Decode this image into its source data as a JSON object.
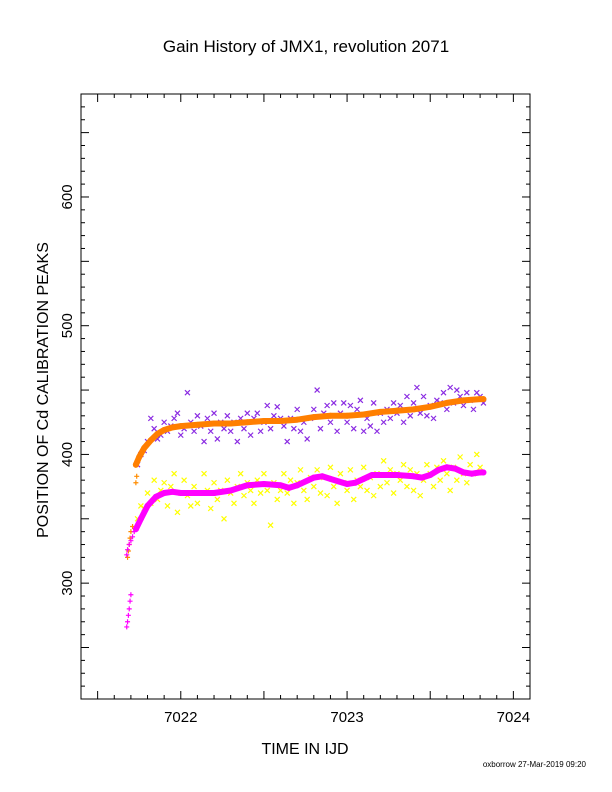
{
  "chart_data": {
    "type": "scatter",
    "title": "Gain History of JMX1, revolution 2071",
    "xlabel": "TIME IN IJD",
    "ylabel": "POSITION OF Cd CALIBRATION PEAKS",
    "xlim": [
      7021.4,
      7024.1
    ],
    "ylim": [
      210,
      680
    ],
    "x_ticks": [
      7022,
      7023,
      7024
    ],
    "x_tick_labels": [
      "7022",
      "7023",
      "7024"
    ],
    "y_ticks": [
      300,
      400,
      500,
      600
    ],
    "y_tick_labels": [
      "300",
      "400",
      "500",
      "600"
    ],
    "grid": false,
    "footer": "oxborrow 27-Mar-2019 09:20",
    "series": [
      {
        "marker": "x",
        "color": "#8a2be2",
        "points": [
          [
            7021.74,
            392
          ],
          [
            7021.76,
            400
          ],
          [
            7021.78,
            403
          ],
          [
            7021.8,
            410
          ],
          [
            7021.82,
            428
          ],
          [
            7021.84,
            420
          ],
          [
            7021.86,
            412
          ],
          [
            7021.88,
            415
          ],
          [
            7021.9,
            425
          ],
          [
            7021.92,
            418
          ],
          [
            7021.94,
            422
          ],
          [
            7021.96,
            428
          ],
          [
            7021.98,
            432
          ],
          [
            7022.0,
            415
          ],
          [
            7022.02,
            420
          ],
          [
            7022.04,
            448
          ],
          [
            7022.06,
            425
          ],
          [
            7022.08,
            418
          ],
          [
            7022.1,
            430
          ],
          [
            7022.12,
            422
          ],
          [
            7022.14,
            410
          ],
          [
            7022.16,
            428
          ],
          [
            7022.18,
            418
          ],
          [
            7022.2,
            432
          ],
          [
            7022.22,
            412
          ],
          [
            7022.24,
            425
          ],
          [
            7022.26,
            420
          ],
          [
            7022.28,
            430
          ],
          [
            7022.3,
            418
          ],
          [
            7022.32,
            425
          ],
          [
            7022.34,
            410
          ],
          [
            7022.36,
            428
          ],
          [
            7022.38,
            420
          ],
          [
            7022.4,
            432
          ],
          [
            7022.42,
            415
          ],
          [
            7022.44,
            428
          ],
          [
            7022.46,
            432
          ],
          [
            7022.48,
            418
          ],
          [
            7022.5,
            425
          ],
          [
            7022.52,
            438
          ],
          [
            7022.54,
            420
          ],
          [
            7022.56,
            430
          ],
          [
            7022.58,
            437
          ],
          [
            7022.6,
            428
          ],
          [
            7022.62,
            422
          ],
          [
            7022.64,
            410
          ],
          [
            7022.66,
            428
          ],
          [
            7022.68,
            420
          ],
          [
            7022.7,
            435
          ],
          [
            7022.72,
            418
          ],
          [
            7022.74,
            425
          ],
          [
            7022.76,
            412
          ],
          [
            7022.78,
            428
          ],
          [
            7022.8,
            435
          ],
          [
            7022.82,
            450
          ],
          [
            7022.84,
            420
          ],
          [
            7022.86,
            432
          ],
          [
            7022.88,
            438
          ],
          [
            7022.9,
            425
          ],
          [
            7022.92,
            440
          ],
          [
            7022.94,
            418
          ],
          [
            7022.96,
            432
          ],
          [
            7022.98,
            440
          ],
          [
            7023.0,
            425
          ],
          [
            7023.02,
            438
          ],
          [
            7023.04,
            420
          ],
          [
            7023.06,
            435
          ],
          [
            7023.08,
            442
          ],
          [
            7023.1,
            418
          ],
          [
            7023.12,
            428
          ],
          [
            7023.14,
            422
          ],
          [
            7023.16,
            440
          ],
          [
            7023.18,
            418
          ],
          [
            7023.2,
            432
          ],
          [
            7023.22,
            425
          ],
          [
            7023.24,
            435
          ],
          [
            7023.26,
            428
          ],
          [
            7023.28,
            440
          ],
          [
            7023.3,
            432
          ],
          [
            7023.32,
            438
          ],
          [
            7023.34,
            425
          ],
          [
            7023.36,
            445
          ],
          [
            7023.38,
            430
          ],
          [
            7023.4,
            440
          ],
          [
            7023.42,
            452
          ],
          [
            7023.44,
            432
          ],
          [
            7023.46,
            445
          ],
          [
            7023.48,
            430
          ],
          [
            7023.5,
            438
          ],
          [
            7023.52,
            428
          ],
          [
            7023.54,
            442
          ],
          [
            7023.56,
            440
          ],
          [
            7023.58,
            448
          ],
          [
            7023.6,
            435
          ],
          [
            7023.62,
            452
          ],
          [
            7023.64,
            440
          ],
          [
            7023.66,
            450
          ],
          [
            7023.68,
            445
          ],
          [
            7023.7,
            438
          ],
          [
            7023.72,
            448
          ],
          [
            7023.74,
            442
          ],
          [
            7023.76,
            435
          ],
          [
            7023.78,
            448
          ],
          [
            7023.8,
            445
          ],
          [
            7023.82,
            440
          ]
        ]
      },
      {
        "marker": "plus",
        "color": "#ff8c00",
        "points": [
          [
            7021.68,
            320
          ],
          [
            7021.685,
            325
          ],
          [
            7021.69,
            330
          ],
          [
            7021.695,
            335
          ],
          [
            7021.7,
            340
          ],
          [
            7021.71,
            344
          ],
          [
            7021.73,
            378
          ],
          [
            7021.735,
            383
          ]
        ]
      },
      {
        "marker": "thick-line",
        "color": "#ff7f00",
        "points": [
          [
            7021.73,
            392
          ],
          [
            7021.75,
            398
          ],
          [
            7021.78,
            405
          ],
          [
            7021.82,
            411
          ],
          [
            7021.86,
            416
          ],
          [
            7021.9,
            419
          ],
          [
            7021.95,
            421
          ],
          [
            7022.0,
            422
          ],
          [
            7022.1,
            423
          ],
          [
            7022.2,
            424
          ],
          [
            7022.3,
            424
          ],
          [
            7022.4,
            425
          ],
          [
            7022.5,
            426
          ],
          [
            7022.6,
            426
          ],
          [
            7022.7,
            427
          ],
          [
            7022.8,
            429
          ],
          [
            7022.9,
            430
          ],
          [
            7023.0,
            430
          ],
          [
            7023.1,
            431
          ],
          [
            7023.2,
            433
          ],
          [
            7023.3,
            434
          ],
          [
            7023.4,
            435
          ],
          [
            7023.5,
            437
          ],
          [
            7023.6,
            440
          ],
          [
            7023.7,
            442
          ],
          [
            7023.8,
            443
          ],
          [
            7023.82,
            443
          ]
        ]
      },
      {
        "marker": "x",
        "color": "#ffff00",
        "points": [
          [
            7021.74,
            350
          ],
          [
            7021.76,
            360
          ],
          [
            7021.78,
            358
          ],
          [
            7021.8,
            370
          ],
          [
            7021.82,
            362
          ],
          [
            7021.84,
            380
          ],
          [
            7021.86,
            365
          ],
          [
            7021.88,
            372
          ],
          [
            7021.9,
            378
          ],
          [
            7021.92,
            360
          ],
          [
            7021.94,
            375
          ],
          [
            7021.96,
            385
          ],
          [
            7021.98,
            355
          ],
          [
            7022.0,
            370
          ],
          [
            7022.02,
            380
          ],
          [
            7022.04,
            368
          ],
          [
            7022.06,
            360
          ],
          [
            7022.08,
            375
          ],
          [
            7022.1,
            362
          ],
          [
            7022.12,
            370
          ],
          [
            7022.14,
            385
          ],
          [
            7022.16,
            372
          ],
          [
            7022.18,
            358
          ],
          [
            7022.2,
            378
          ],
          [
            7022.22,
            365
          ],
          [
            7022.24,
            372
          ],
          [
            7022.26,
            350
          ],
          [
            7022.28,
            380
          ],
          [
            7022.3,
            370
          ],
          [
            7022.32,
            362
          ],
          [
            7022.34,
            375
          ],
          [
            7022.36,
            385
          ],
          [
            7022.38,
            368
          ],
          [
            7022.4,
            378
          ],
          [
            7022.42,
            372
          ],
          [
            7022.44,
            362
          ],
          [
            7022.46,
            380
          ],
          [
            7022.48,
            370
          ],
          [
            7022.5,
            385
          ],
          [
            7022.52,
            372
          ],
          [
            7022.54,
            345
          ],
          [
            7022.56,
            378
          ],
          [
            7022.58,
            365
          ],
          [
            7022.6,
            372
          ],
          [
            7022.62,
            385
          ],
          [
            7022.64,
            370
          ],
          [
            7022.66,
            380
          ],
          [
            7022.68,
            362
          ],
          [
            7022.7,
            378
          ],
          [
            7022.72,
            388
          ],
          [
            7022.74,
            372
          ],
          [
            7022.76,
            365
          ],
          [
            7022.78,
            382
          ],
          [
            7022.8,
            375
          ],
          [
            7022.82,
            388
          ],
          [
            7022.84,
            370
          ],
          [
            7022.86,
            382
          ],
          [
            7022.88,
            368
          ],
          [
            7022.9,
            390
          ],
          [
            7022.92,
            375
          ],
          [
            7022.94,
            362
          ],
          [
            7022.96,
            385
          ],
          [
            7022.98,
            378
          ],
          [
            7023.0,
            372
          ],
          [
            7023.02,
            388
          ],
          [
            7023.04,
            365
          ],
          [
            7023.06,
            380
          ],
          [
            7023.08,
            375
          ],
          [
            7023.1,
            390
          ],
          [
            7023.12,
            372
          ],
          [
            7023.14,
            382
          ],
          [
            7023.16,
            368
          ],
          [
            7023.18,
            385
          ],
          [
            7023.2,
            375
          ],
          [
            7023.22,
            395
          ],
          [
            7023.24,
            378
          ],
          [
            7023.26,
            388
          ],
          [
            7023.28,
            370
          ],
          [
            7023.3,
            385
          ],
          [
            7023.32,
            380
          ],
          [
            7023.34,
            392
          ],
          [
            7023.36,
            375
          ],
          [
            7023.38,
            388
          ],
          [
            7023.4,
            372
          ],
          [
            7023.42,
            385
          ],
          [
            7023.44,
            368
          ],
          [
            7023.46,
            380
          ],
          [
            7023.48,
            392
          ],
          [
            7023.5,
            385
          ],
          [
            7023.52,
            375
          ],
          [
            7023.54,
            390
          ],
          [
            7023.56,
            380
          ],
          [
            7023.58,
            395
          ],
          [
            7023.6,
            385
          ],
          [
            7023.62,
            372
          ],
          [
            7023.64,
            390
          ],
          [
            7023.66,
            380
          ],
          [
            7023.68,
            398
          ],
          [
            7023.7,
            385
          ],
          [
            7023.72,
            378
          ],
          [
            7023.74,
            392
          ],
          [
            7023.76,
            385
          ],
          [
            7023.78,
            400
          ],
          [
            7023.8,
            390
          ]
        ]
      },
      {
        "marker": "plus",
        "color": "#ff00ff",
        "points": [
          [
            7021.675,
            266
          ],
          [
            7021.68,
            270
          ],
          [
            7021.685,
            275
          ],
          [
            7021.69,
            280
          ],
          [
            7021.695,
            286
          ],
          [
            7021.7,
            291
          ],
          [
            7021.675,
            322
          ],
          [
            7021.68,
            326
          ],
          [
            7021.69,
            330
          ],
          [
            7021.7,
            333
          ],
          [
            7021.71,
            336
          ],
          [
            7021.72,
            340
          ],
          [
            7021.73,
            343
          ]
        ]
      },
      {
        "marker": "thick-line",
        "color": "#ff00ff",
        "points": [
          [
            7021.73,
            342
          ],
          [
            7021.76,
            350
          ],
          [
            7021.8,
            360
          ],
          [
            7021.85,
            367
          ],
          [
            7021.9,
            370
          ],
          [
            7021.95,
            371
          ],
          [
            7022.0,
            370
          ],
          [
            7022.1,
            370
          ],
          [
            7022.2,
            370
          ],
          [
            7022.3,
            372
          ],
          [
            7022.4,
            376
          ],
          [
            7022.5,
            377
          ],
          [
            7022.6,
            376
          ],
          [
            7022.65,
            374
          ],
          [
            7022.7,
            376
          ],
          [
            7022.8,
            382
          ],
          [
            7022.85,
            383
          ],
          [
            7022.9,
            381
          ],
          [
            7022.95,
            379
          ],
          [
            7023.0,
            377
          ],
          [
            7023.05,
            378
          ],
          [
            7023.1,
            381
          ],
          [
            7023.15,
            384
          ],
          [
            7023.2,
            384
          ],
          [
            7023.3,
            384
          ],
          [
            7023.4,
            383
          ],
          [
            7023.45,
            382
          ],
          [
            7023.5,
            384
          ],
          [
            7023.55,
            388
          ],
          [
            7023.6,
            390
          ],
          [
            7023.65,
            389
          ],
          [
            7023.7,
            386
          ],
          [
            7023.75,
            385
          ],
          [
            7023.8,
            386
          ],
          [
            7023.82,
            386
          ]
        ]
      }
    ]
  }
}
